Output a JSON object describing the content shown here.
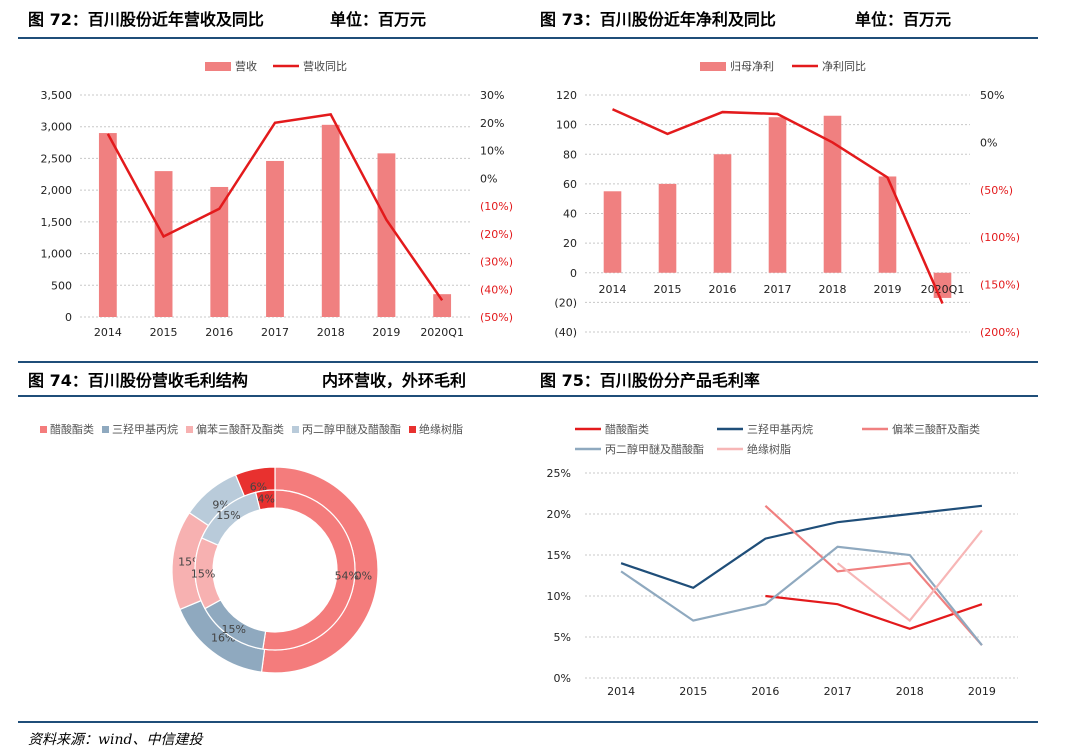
{
  "headers": {
    "fig72_title": "图 72：百川股份近年营收及同比",
    "fig72_unit": "单位：百万元",
    "fig73_title": "图 73：百川股份近年净利及同比",
    "fig73_unit": "单位：百万元",
    "fig74_title": "图 74：百川股份营收毛利结构",
    "fig74_note": "内环营收，外环毛利",
    "fig75_title": "图 75：百川股份分产品毛利率"
  },
  "footer": "资料来源：wind、中信建投",
  "colors": {
    "bar": "#f08080",
    "line": "#e31a1c",
    "rule": "#1f4e79",
    "neg": "#e31a1c"
  },
  "chart_data": [
    {
      "id": "fig72",
      "type": "bar",
      "categories": [
        "2014",
        "2015",
        "2016",
        "2017",
        "2018",
        "2019",
        "2020Q1"
      ],
      "series": [
        {
          "name": "营收",
          "type": "bar",
          "axis": "left",
          "values": [
            2900,
            2300,
            2050,
            2460,
            3030,
            2580,
            360
          ]
        },
        {
          "name": "营收同比",
          "type": "line",
          "axis": "right",
          "values": [
            16,
            -21,
            -11,
            20,
            23,
            -15,
            -44
          ]
        }
      ],
      "ylim": [
        0,
        3500
      ],
      "yticks": [
        "0",
        "500",
        "1,000",
        "1,500",
        "2,000",
        "2,500",
        "3,000",
        "3,500"
      ],
      "y2lim": [
        -50,
        30
      ],
      "y2ticks": [
        "(50%)",
        "(40%)",
        "(30%)",
        "(20%)",
        "(10%)",
        "0%",
        "10%",
        "20%",
        "30%"
      ],
      "legend": "top"
    },
    {
      "id": "fig73",
      "type": "bar",
      "categories": [
        "2014",
        "2015",
        "2016",
        "2017",
        "2018",
        "2019",
        "2020Q1"
      ],
      "series": [
        {
          "name": "归母净利",
          "type": "bar",
          "axis": "left",
          "values": [
            55,
            60,
            80,
            105,
            106,
            65,
            -17
          ]
        },
        {
          "name": "净利同比",
          "type": "line",
          "axis": "right",
          "values": [
            35,
            9,
            32,
            30,
            0,
            -37,
            -170
          ]
        }
      ],
      "ylim": [
        -40,
        120
      ],
      "yticks": [
        "(40)",
        "(20)",
        "0",
        "20",
        "40",
        "60",
        "80",
        "100",
        "120"
      ],
      "y2lim": [
        -200,
        50
      ],
      "y2ticks": [
        "(200%)",
        "(150%)",
        "(100%)",
        "(50%)",
        "0%",
        "50%"
      ],
      "legend": "top"
    },
    {
      "id": "fig74",
      "type": "pie",
      "categories": [
        "醋酸酯类",
        "三羟甲基丙烷",
        "偏苯三酸酐及酯类",
        "丙二醇甲醚及醋酸酯",
        "绝缘树脂"
      ],
      "series": [
        {
          "name": "外环毛利",
          "ring": "outer",
          "values": [
            50,
            16,
            15,
            9,
            6
          ],
          "labels": [
            "50%",
            "16%",
            "15%",
            "9%",
            "6%"
          ]
        },
        {
          "name": "内环营收",
          "ring": "inner",
          "values": [
            54,
            15,
            15,
            15,
            4
          ],
          "labels": [
            "54%",
            "15%",
            "15%",
            "15%",
            "4%"
          ]
        }
      ],
      "colors": [
        "#f47c7c",
        "#8fa9bf",
        "#f7b1b1",
        "#b9cbda",
        "#e8312f"
      ],
      "legend": "top"
    },
    {
      "id": "fig75",
      "type": "line",
      "x": [
        "2014",
        "2015",
        "2016",
        "2017",
        "2018",
        "2019"
      ],
      "series": [
        {
          "name": "醋酸酯类",
          "color": "#e31a1c",
          "values": [
            null,
            null,
            10,
            9,
            6,
            9
          ]
        },
        {
          "name": "三羟甲基丙烷",
          "color": "#1f4e79",
          "values": [
            14,
            11,
            17,
            19,
            20,
            21
          ]
        },
        {
          "name": "偏苯三酸酐及酯类",
          "color": "#f08080",
          "values": [
            null,
            null,
            21,
            13,
            14,
            4
          ]
        },
        {
          "name": "丙二醇甲醚及醋酸酯",
          "color": "#8fa9bf",
          "values": [
            13,
            7,
            9,
            16,
            15,
            4
          ]
        },
        {
          "name": "绝缘树脂",
          "color": "#f7b6b6",
          "values": [
            null,
            null,
            null,
            14,
            7,
            18
          ]
        }
      ],
      "ylim": [
        0,
        25
      ],
      "yticks": [
        "0%",
        "5%",
        "10%",
        "15%",
        "20%",
        "25%"
      ],
      "legend": "top"
    }
  ]
}
